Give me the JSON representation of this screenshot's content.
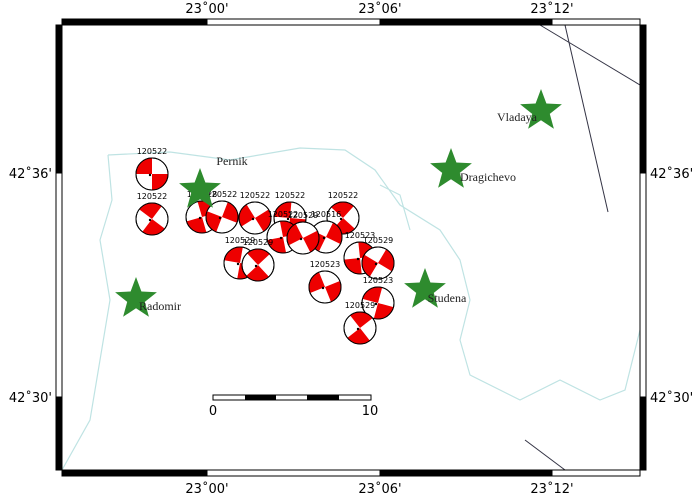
{
  "axes": {
    "top": [
      "23˚00'",
      "23˚06'",
      "23˚12'"
    ],
    "bottom": [
      "23˚00'",
      "23˚06'",
      "23˚12'"
    ],
    "left": [
      "42˚36'",
      "42˚30'"
    ],
    "right": [
      "42˚36'",
      "42˚30'"
    ]
  },
  "towns": [
    {
      "name": "Pernik"
    },
    {
      "name": "Vladaya"
    },
    {
      "name": "Dragichevo"
    },
    {
      "name": "Studena"
    },
    {
      "name": "Radomir"
    }
  ],
  "events": [
    {
      "label": "120522"
    },
    {
      "label": "120522"
    },
    {
      "label": "120528"
    },
    {
      "label": "120522"
    },
    {
      "label": "120522"
    },
    {
      "label": "120522"
    },
    {
      "label": "120522"
    },
    {
      "label": "120522"
    },
    {
      "label": "120516"
    },
    {
      "label": "120529"
    },
    {
      "label": "120529"
    },
    {
      "label": "120529"
    },
    {
      "label": "120523"
    },
    {
      "label": "120529"
    },
    {
      "label": "120523"
    },
    {
      "label": "120523"
    },
    {
      "label": "120529"
    }
  ],
  "scale": {
    "labels": [
      "0",
      "10"
    ]
  }
}
